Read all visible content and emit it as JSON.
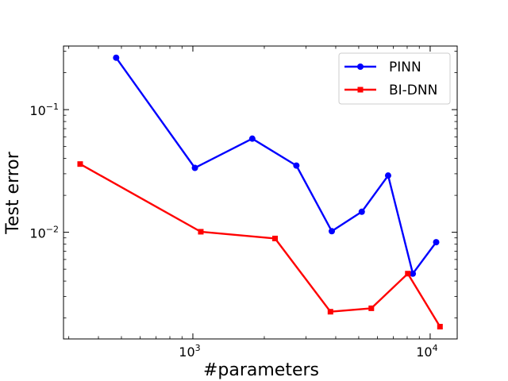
{
  "chart_data": {
    "type": "line",
    "title": "",
    "xlabel": "#parameters",
    "ylabel": "Test error",
    "xscale": "log",
    "yscale": "log",
    "xlim": [
      285,
      13000
    ],
    "ylim": [
      0.00135,
      0.33
    ],
    "grid": false,
    "legend_position": "top-right",
    "x_ticks": [
      {
        "value": 1000,
        "base": "10",
        "exp": "3"
      },
      {
        "value": 10000,
        "base": "10",
        "exp": "4"
      }
    ],
    "y_ticks": [
      {
        "value": 0.1,
        "base": "10",
        "exp": "−1"
      },
      {
        "value": 0.01,
        "base": "10",
        "exp": "−2"
      }
    ],
    "series": [
      {
        "name": "PINN",
        "color": "#0000ff",
        "marker": "circle",
        "x": [
          475,
          1020,
          1780,
          2730,
          3850,
          5150,
          6650,
          8450,
          10600
        ],
        "y": [
          0.265,
          0.0335,
          0.058,
          0.035,
          0.0102,
          0.0147,
          0.029,
          0.0046,
          0.0083
        ]
      },
      {
        "name": "BI-DNN",
        "color": "#ff0000",
        "marker": "square",
        "x": [
          335,
          1080,
          2220,
          3800,
          5650,
          8050,
          11000
        ],
        "y": [
          0.036,
          0.0101,
          0.0089,
          0.00225,
          0.0024,
          0.0046,
          0.0017
        ]
      }
    ]
  }
}
